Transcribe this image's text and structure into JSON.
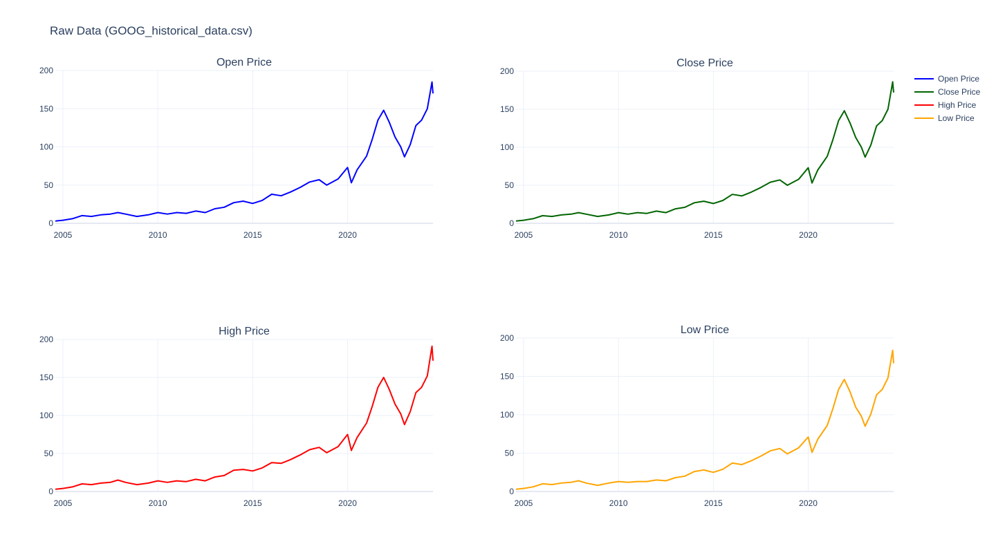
{
  "title": "Raw Data (GOOG_historical_data.csv)",
  "legend": {
    "placement": "top-right",
    "items": [
      {
        "label": "Open Price",
        "color": "#0000ff"
      },
      {
        "label": "Close Price",
        "color": "#006400"
      },
      {
        "label": "High Price",
        "color": "#ff0000"
      },
      {
        "label": "Low Price",
        "color": "#ffa500"
      }
    ]
  },
  "chart_data": [
    {
      "type": "line",
      "title": "Open Price",
      "color": "#0000ff",
      "xlim": [
        2004.6,
        2024.5
      ],
      "ylim": [
        0,
        200
      ],
      "xticks": [
        2005,
        2010,
        2015,
        2020
      ],
      "yticks": [
        0,
        50,
        100,
        150,
        200
      ],
      "grid": true,
      "x": [
        2004.6,
        2005.0,
        2005.5,
        2006.0,
        2006.5,
        2007.0,
        2007.5,
        2007.9,
        2008.3,
        2008.9,
        2009.5,
        2010.0,
        2010.5,
        2011.0,
        2011.5,
        2012.0,
        2012.5,
        2013.0,
        2013.5,
        2014.0,
        2014.5,
        2015.0,
        2015.5,
        2016.0,
        2016.5,
        2017.0,
        2017.5,
        2018.0,
        2018.5,
        2018.9,
        2019.5,
        2020.0,
        2020.2,
        2020.5,
        2021.0,
        2021.3,
        2021.6,
        2021.9,
        2022.2,
        2022.5,
        2022.8,
        2023.0,
        2023.3,
        2023.6,
        2023.9,
        2024.2,
        2024.45,
        2024.5
      ],
      "y": [
        3,
        4,
        6,
        10,
        9,
        11,
        12,
        14,
        12,
        9,
        11,
        14,
        12,
        14,
        13,
        16,
        14,
        19,
        21,
        27,
        29,
        26,
        30,
        38,
        36,
        41,
        47,
        54,
        57,
        50,
        58,
        73,
        53,
        70,
        88,
        110,
        135,
        148,
        132,
        113,
        100,
        87,
        103,
        128,
        135,
        150,
        185,
        170
      ]
    },
    {
      "type": "line",
      "title": "Close Price",
      "color": "#006400",
      "xlim": [
        2004.6,
        2024.5
      ],
      "ylim": [
        0,
        200
      ],
      "xticks": [
        2005,
        2010,
        2015,
        2020
      ],
      "yticks": [
        0,
        50,
        100,
        150,
        200
      ],
      "grid": true,
      "x": [
        2004.6,
        2005.0,
        2005.5,
        2006.0,
        2006.5,
        2007.0,
        2007.5,
        2007.9,
        2008.3,
        2008.9,
        2009.5,
        2010.0,
        2010.5,
        2011.0,
        2011.5,
        2012.0,
        2012.5,
        2013.0,
        2013.5,
        2014.0,
        2014.5,
        2015.0,
        2015.5,
        2016.0,
        2016.5,
        2017.0,
        2017.5,
        2018.0,
        2018.5,
        2018.9,
        2019.5,
        2020.0,
        2020.2,
        2020.5,
        2021.0,
        2021.3,
        2021.6,
        2021.9,
        2022.2,
        2022.5,
        2022.8,
        2023.0,
        2023.3,
        2023.6,
        2023.9,
        2024.2,
        2024.45,
        2024.5
      ],
      "y": [
        3,
        4,
        6,
        10,
        9,
        11,
        12,
        14,
        12,
        9,
        11,
        14,
        12,
        14,
        13,
        16,
        14,
        19,
        21,
        27,
        29,
        26,
        30,
        38,
        36,
        41,
        47,
        54,
        57,
        50,
        58,
        73,
        53,
        70,
        88,
        110,
        135,
        148,
        132,
        113,
        100,
        87,
        103,
        128,
        135,
        150,
        186,
        172
      ]
    },
    {
      "type": "line",
      "title": "High Price",
      "color": "#ff0000",
      "xlim": [
        2004.6,
        2024.5
      ],
      "ylim": [
        0,
        200
      ],
      "xticks": [
        2005,
        2010,
        2015,
        2020
      ],
      "yticks": [
        0,
        50,
        100,
        150,
        200
      ],
      "grid": true,
      "x": [
        2004.6,
        2005.0,
        2005.5,
        2006.0,
        2006.5,
        2007.0,
        2007.5,
        2007.9,
        2008.3,
        2008.9,
        2009.5,
        2010.0,
        2010.5,
        2011.0,
        2011.5,
        2012.0,
        2012.5,
        2013.0,
        2013.5,
        2014.0,
        2014.5,
        2015.0,
        2015.5,
        2016.0,
        2016.5,
        2017.0,
        2017.5,
        2018.0,
        2018.5,
        2018.9,
        2019.5,
        2020.0,
        2020.2,
        2020.5,
        2021.0,
        2021.3,
        2021.6,
        2021.9,
        2022.2,
        2022.5,
        2022.8,
        2023.0,
        2023.3,
        2023.6,
        2023.9,
        2024.2,
        2024.45,
        2024.5
      ],
      "y": [
        3,
        4,
        6,
        10,
        9,
        11,
        12,
        15,
        12,
        9,
        11,
        14,
        12,
        14,
        13,
        16,
        14,
        19,
        21,
        28,
        29,
        27,
        31,
        38,
        37,
        42,
        48,
        55,
        58,
        51,
        59,
        75,
        54,
        71,
        90,
        112,
        137,
        150,
        134,
        115,
        102,
        88,
        105,
        130,
        137,
        152,
        191,
        172
      ]
    },
    {
      "type": "line",
      "title": "Low Price",
      "color": "#ffa500",
      "xlim": [
        2004.6,
        2024.5
      ],
      "ylim": [
        0,
        200
      ],
      "xticks": [
        2005,
        2010,
        2015,
        2020
      ],
      "yticks": [
        0,
        50,
        100,
        150,
        200
      ],
      "grid": true,
      "x": [
        2004.6,
        2005.0,
        2005.5,
        2006.0,
        2006.5,
        2007.0,
        2007.5,
        2007.9,
        2008.3,
        2008.9,
        2009.5,
        2010.0,
        2010.5,
        2011.0,
        2011.5,
        2012.0,
        2012.5,
        2013.0,
        2013.5,
        2014.0,
        2014.5,
        2015.0,
        2015.5,
        2016.0,
        2016.5,
        2017.0,
        2017.5,
        2018.0,
        2018.5,
        2018.9,
        2019.5,
        2020.0,
        2020.2,
        2020.5,
        2021.0,
        2021.3,
        2021.6,
        2021.9,
        2022.2,
        2022.5,
        2022.8,
        2023.0,
        2023.3,
        2023.6,
        2023.9,
        2024.2,
        2024.45,
        2024.5
      ],
      "y": [
        3,
        4,
        6,
        10,
        9,
        11,
        12,
        14,
        11,
        8,
        11,
        13,
        12,
        13,
        13,
        15,
        14,
        18,
        20,
        26,
        28,
        25,
        29,
        37,
        35,
        40,
        46,
        53,
        56,
        49,
        57,
        71,
        51,
        68,
        86,
        108,
        133,
        146,
        130,
        110,
        98,
        85,
        101,
        126,
        133,
        148,
        184,
        167
      ]
    }
  ]
}
